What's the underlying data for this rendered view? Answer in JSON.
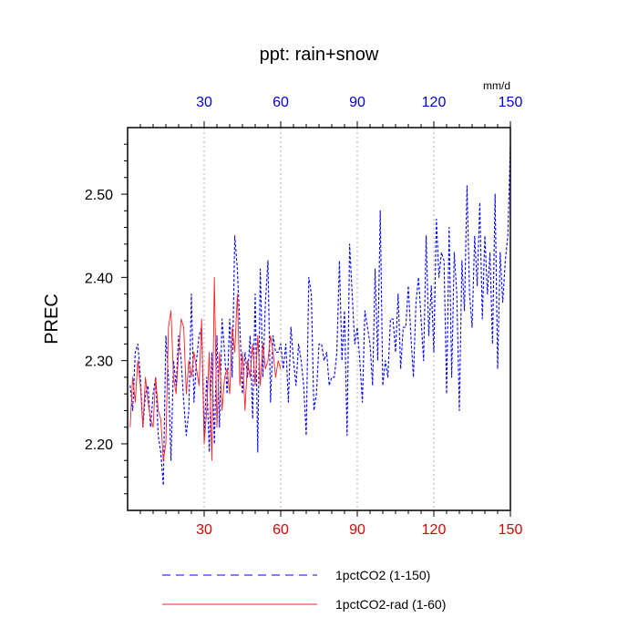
{
  "chart_data": {
    "type": "line",
    "title": "ppt: rain+snow",
    "ylabel": "PREC",
    "top_axis_unit": "mm/d",
    "xlim": [
      0,
      150
    ],
    "ylim": [
      2.12,
      2.58
    ],
    "x_ticks": [
      30,
      60,
      90,
      120,
      150
    ],
    "y_ticks": [
      2.2,
      2.3,
      2.4,
      2.5
    ],
    "y_tick_labels": [
      "2.20",
      "2.30",
      "2.40",
      "2.50"
    ],
    "grid": "vertical dotted at x ticks",
    "colors": {
      "series1": "#0000ff",
      "series2": "#ff2020",
      "bottom_ticks": "#e00000",
      "top_ticks": "#0000dd"
    },
    "series": [
      {
        "name": "1pctCO2 (1-150)",
        "style": "dashed",
        "color": "#0000ff",
        "x_start": 1,
        "values": [
          2.27,
          2.24,
          2.31,
          2.32,
          2.28,
          2.22,
          2.26,
          2.27,
          2.22,
          2.26,
          2.28,
          2.21,
          2.19,
          2.15,
          2.33,
          2.28,
          2.18,
          2.3,
          2.27,
          2.33,
          2.3,
          2.25,
          2.21,
          2.24,
          2.38,
          2.25,
          2.3,
          2.33,
          2.34,
          2.21,
          2.28,
          2.19,
          2.31,
          2.2,
          2.33,
          2.22,
          2.35,
          2.31,
          2.26,
          2.35,
          2.28,
          2.45,
          2.41,
          2.34,
          2.26,
          2.31,
          2.28,
          2.33,
          2.23,
          2.38,
          2.19,
          2.41,
          2.28,
          2.37,
          2.42,
          2.25,
          2.33,
          2.31,
          2.31,
          2.32,
          2.29,
          2.32,
          2.25,
          2.34,
          2.3,
          2.27,
          2.32,
          2.3,
          2.27,
          2.21,
          2.4,
          2.38,
          2.24,
          2.26,
          2.32,
          2.32,
          2.3,
          2.31,
          2.27,
          2.28,
          2.28,
          2.31,
          2.42,
          2.3,
          2.36,
          2.21,
          2.44,
          2.38,
          2.32,
          2.34,
          2.3,
          2.25,
          2.36,
          2.34,
          2.32,
          2.27,
          2.41,
          2.3,
          2.48,
          2.27,
          2.3,
          2.28,
          2.35,
          2.35,
          2.31,
          2.38,
          2.29,
          2.34,
          2.34,
          2.39,
          2.33,
          2.28,
          2.37,
          2.4,
          2.35,
          2.3,
          2.45,
          2.33,
          2.39,
          2.31,
          2.47,
          2.4,
          2.43,
          2.42,
          2.26,
          2.46,
          2.28,
          2.43,
          2.38,
          2.24,
          2.42,
          2.36,
          2.51,
          2.38,
          2.34,
          2.45,
          2.39,
          2.49,
          2.35,
          2.45,
          2.38,
          2.43,
          2.32,
          2.5,
          2.29,
          2.43,
          2.37,
          2.42,
          2.45,
          2.56
        ]
      },
      {
        "name": "1pctCO2-rad (1-60)",
        "style": "solid",
        "color": "#ff2020",
        "x_start": 1,
        "values": [
          2.22,
          2.28,
          2.25,
          2.3,
          2.27,
          2.22,
          2.28,
          2.25,
          2.23,
          2.22,
          2.28,
          2.24,
          2.23,
          2.18,
          2.2,
          2.34,
          2.36,
          2.28,
          2.26,
          2.31,
          2.35,
          2.34,
          2.26,
          2.3,
          2.28,
          2.31,
          2.29,
          2.27,
          2.35,
          2.2,
          2.24,
          2.31,
          2.18,
          2.4,
          2.22,
          2.31,
          2.24,
          2.28,
          2.29,
          2.26,
          2.34,
          2.31,
          2.38,
          2.27,
          2.31,
          2.24,
          2.3,
          2.28,
          2.32,
          2.27,
          2.33,
          2.27,
          2.32,
          2.29,
          2.3,
          2.33,
          2.31,
          2.28,
          2.3,
          2.29
        ]
      }
    ]
  },
  "legend": [
    {
      "label": "1pctCO2 (1-150)",
      "style": "dashed",
      "color": "#0000ff"
    },
    {
      "label": "1pctCO2-rad (1-60)",
      "style": "solid",
      "color": "#ff2020"
    }
  ]
}
